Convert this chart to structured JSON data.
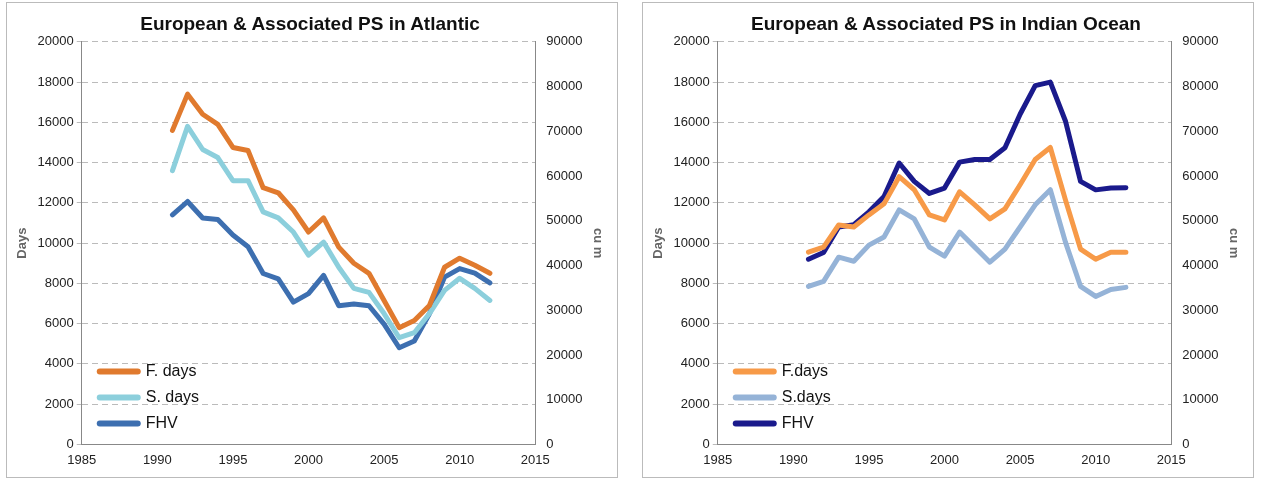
{
  "chart_data": [
    {
      "type": "line",
      "title": "European & Associated PS in Atlantic",
      "ylabel": "Days",
      "y2label": "cu m",
      "x": [
        1991,
        1992,
        1993,
        1994,
        1995,
        1996,
        1997,
        1998,
        1999,
        2000,
        2001,
        2002,
        2003,
        2004,
        2005,
        2006,
        2007,
        2008,
        2009,
        2010,
        2011,
        2012
      ],
      "series": [
        {
          "name": "F. days",
          "color": "#e07a2e",
          "values": [
            15600,
            17400,
            16400,
            15900,
            14750,
            14600,
            12750,
            12500,
            11650,
            10550,
            11250,
            9800,
            9000,
            8500,
            7150,
            5800,
            6150,
            6900,
            8800,
            9250,
            8900,
            8500
          ]
        },
        {
          "name": "S. days",
          "color": "#8ccfdc",
          "values": [
            13600,
            15800,
            14650,
            14250,
            13100,
            13100,
            11550,
            11250,
            10550,
            9400,
            10050,
            8800,
            7750,
            7550,
            6500,
            5300,
            5550,
            6500,
            7650,
            8250,
            7750,
            7150
          ]
        },
        {
          "name": "FHV",
          "color": "#3d6fb0",
          "axis": "y2",
          "values": [
            51300,
            54300,
            50600,
            50300,
            46800,
            44200,
            38200,
            37000,
            31800,
            33700,
            37800,
            31000,
            31400,
            31000,
            26900,
            21600,
            23100,
            29200,
            37400,
            39300,
            38300,
            36100
          ]
        }
      ],
      "xlim": [
        1985,
        2015
      ],
      "xticks": [
        1985,
        1990,
        1995,
        2000,
        2005,
        2010,
        2015
      ],
      "ylim": [
        0,
        20000
      ],
      "yticks": [
        0,
        2000,
        4000,
        6000,
        8000,
        10000,
        12000,
        14000,
        16000,
        18000,
        20000
      ],
      "y2lim": [
        0,
        90000
      ],
      "y2ticks": [
        0,
        10000,
        20000,
        30000,
        40000,
        50000,
        60000,
        70000,
        80000,
        90000
      ],
      "grid": "y",
      "legend": "bottom left",
      "marker": "none",
      "line_style": "solid"
    },
    {
      "type": "line",
      "title": "European & Associated PS in Indian Ocean",
      "ylabel": "Days",
      "y2label": "cu m",
      "x": [
        1991,
        1992,
        1993,
        1994,
        1995,
        1996,
        1997,
        1998,
        1999,
        2000,
        2001,
        2002,
        2003,
        2004,
        2005,
        2006,
        2007,
        2008,
        2009,
        2010,
        2011,
        2012
      ],
      "series": [
        {
          "name": "F.days",
          "color": "#f79a48",
          "values": [
            9550,
            9800,
            10900,
            10800,
            11400,
            11950,
            13300,
            12650,
            11400,
            11150,
            12550,
            11900,
            11200,
            11700,
            12900,
            14150,
            14750,
            12150,
            9700,
            9200,
            9550,
            9550
          ]
        },
        {
          "name": "S.days",
          "color": "#95b3d7",
          "values": [
            7850,
            8100,
            9300,
            9100,
            9900,
            10300,
            11650,
            11200,
            9800,
            9350,
            10550,
            9800,
            9050,
            9700,
            10800,
            11900,
            12650,
            10050,
            7850,
            7350,
            7700,
            7800
          ]
        },
        {
          "name": "FHV",
          "color": "#1a1a8c",
          "axis": "y2",
          "values": [
            41400,
            42900,
            48600,
            49100,
            52000,
            55400,
            62900,
            58800,
            56100,
            57300,
            63100,
            63700,
            63700,
            66300,
            73800,
            80200,
            81000,
            72300,
            58800,
            56900,
            57300,
            57400
          ]
        }
      ],
      "xlim": [
        1985,
        2015
      ],
      "xticks": [
        1985,
        1990,
        1995,
        2000,
        2005,
        2010,
        2015
      ],
      "ylim": [
        0,
        20000
      ],
      "yticks": [
        0,
        2000,
        4000,
        6000,
        8000,
        10000,
        12000,
        14000,
        16000,
        18000,
        20000
      ],
      "y2lim": [
        0,
        90000
      ],
      "y2ticks": [
        0,
        10000,
        20000,
        30000,
        40000,
        50000,
        60000,
        70000,
        80000,
        90000
      ],
      "grid": "y",
      "legend": "bottom left",
      "marker": "none",
      "line_style": "solid"
    }
  ]
}
